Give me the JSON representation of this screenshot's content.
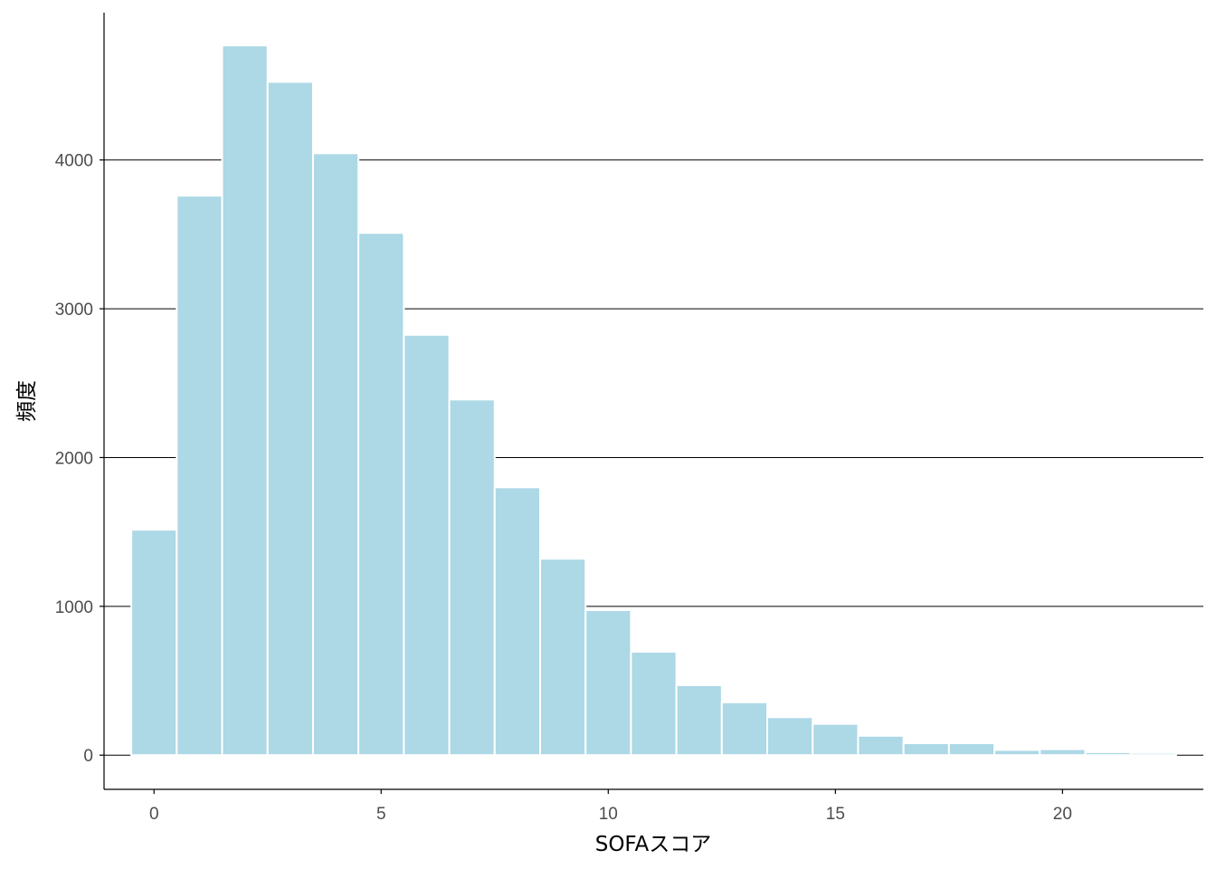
{
  "chart_data": {
    "type": "bar",
    "title": "",
    "xlabel": "SOFAスコア",
    "ylabel": "頻度",
    "x": [
      0,
      1,
      2,
      3,
      4,
      5,
      6,
      7,
      8,
      9,
      10,
      11,
      12,
      13,
      14,
      15,
      16,
      17,
      18,
      19,
      20,
      21,
      22
    ],
    "values": [
      1515,
      3760,
      4770,
      4525,
      4045,
      3510,
      2825,
      2390,
      1800,
      1320,
      975,
      695,
      470,
      355,
      255,
      210,
      130,
      80,
      80,
      35,
      40,
      20,
      15
    ],
    "xlim": [
      -1.1,
      23.1
    ],
    "ylim": [
      -230,
      4990
    ],
    "xticks": [
      0,
      5,
      10,
      15,
      20
    ],
    "yticks": [
      0,
      1000,
      2000,
      3000,
      4000
    ],
    "grid": "horizontal major lines",
    "bar_color": "#add8e6",
    "bar_outline_color": "#ffffff",
    "gridline_color": "#000000",
    "axis_color": "#000000",
    "tick_label_color": "#4d4d4d"
  }
}
